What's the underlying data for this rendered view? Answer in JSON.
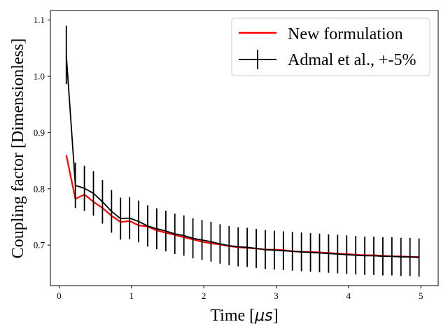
{
  "chart_data": {
    "type": "line",
    "title": "",
    "xlabel": "Time [",
    "xlabel_math": "μs",
    "xlabel_end": "]",
    "ylabel": "Coupling factor [Dimensionless]",
    "xlim": [
      -0.12,
      5.24
    ],
    "ylim": [
      0.628,
      1.117
    ],
    "x_ticks": [
      0,
      1,
      2,
      3,
      4,
      5
    ],
    "x_tick_labels": [
      "0",
      "1",
      "2",
      "3",
      "4",
      "5"
    ],
    "y_ticks": [
      0.7,
      0.8,
      0.9,
      1.0,
      1.1
    ],
    "y_tick_labels": [
      "0.7",
      "0.8",
      "0.9",
      "1.0",
      "1.1"
    ],
    "legend_position": "upper-right",
    "x": [
      0.1,
      0.225,
      0.35,
      0.475,
      0.6,
      0.725,
      0.85,
      0.975,
      1.1,
      1.225,
      1.35,
      1.475,
      1.6,
      1.725,
      1.85,
      1.975,
      2.1,
      2.225,
      2.35,
      2.475,
      2.6,
      2.725,
      2.85,
      2.975,
      3.1,
      3.225,
      3.35,
      3.475,
      3.6,
      3.725,
      3.85,
      3.975,
      4.1,
      4.225,
      4.35,
      4.475,
      4.6,
      4.725,
      4.85,
      4.975
    ],
    "series": [
      {
        "name": "New formulation",
        "color": "#ff0000",
        "style": "line",
        "values": [
          0.86,
          0.782,
          0.79,
          0.777,
          0.766,
          0.752,
          0.741,
          0.743,
          0.735,
          0.733,
          0.726,
          0.722,
          0.718,
          0.714,
          0.71,
          0.706,
          0.703,
          0.701,
          0.698,
          0.696,
          0.695,
          0.694,
          0.692,
          0.692,
          0.691,
          0.689,
          0.688,
          0.688,
          0.687,
          0.686,
          0.685,
          0.684,
          0.683,
          0.682,
          0.682,
          0.681,
          0.68,
          0.68,
          0.679,
          0.679
        ]
      },
      {
        "name": "Admal et al., +-5%",
        "color": "#000000",
        "style": "errorbar",
        "error_fraction": 0.05,
        "values": [
          1.038,
          0.806,
          0.801,
          0.792,
          0.777,
          0.76,
          0.747,
          0.748,
          0.742,
          0.734,
          0.729,
          0.725,
          0.72,
          0.717,
          0.712,
          0.709,
          0.706,
          0.702,
          0.699,
          0.697,
          0.696,
          0.694,
          0.692,
          0.691,
          0.69,
          0.689,
          0.688,
          0.687,
          0.686,
          0.685,
          0.684,
          0.683,
          0.682,
          0.681,
          0.681,
          0.68,
          0.68,
          0.679,
          0.679,
          0.678
        ]
      }
    ]
  }
}
